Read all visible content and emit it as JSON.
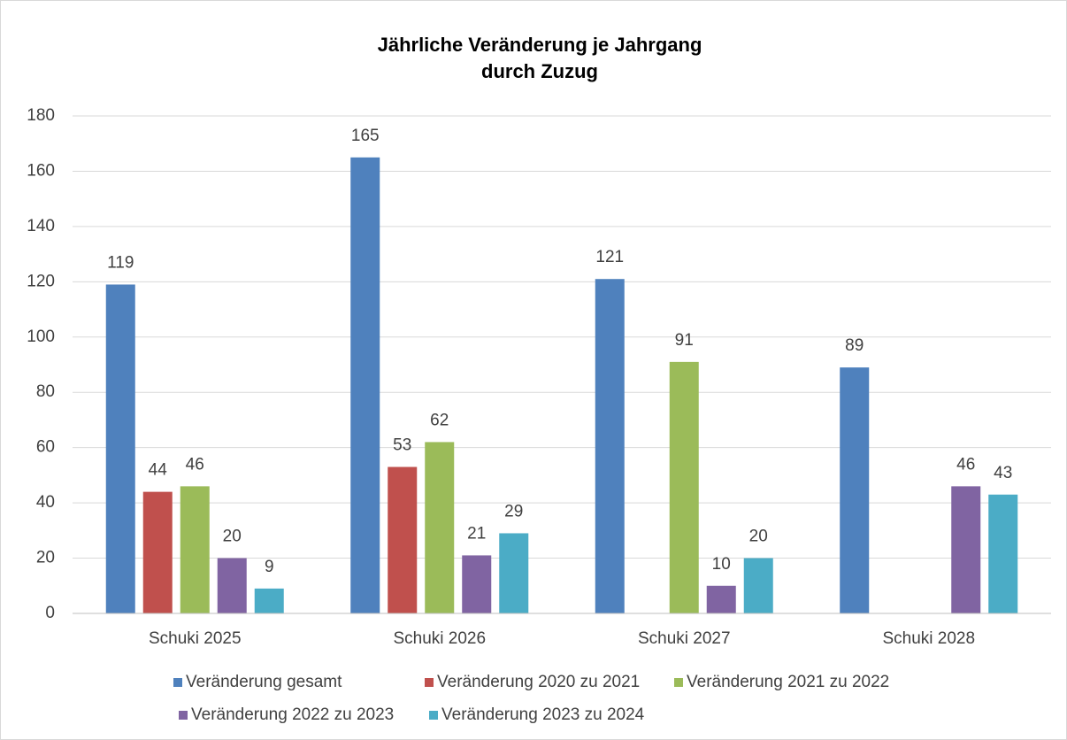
{
  "chart_data": {
    "type": "bar",
    "title": [
      "Jährliche Veränderung je Jahrgang",
      "durch Zuzug"
    ],
    "categories": [
      "Schuki 2025",
      "Schuki 2026",
      "Schuki 2027",
      "Schuki 2028"
    ],
    "series": [
      {
        "name": "Veränderung gesamt",
        "color": "#4f81bd",
        "values": [
          119,
          165,
          121,
          89
        ]
      },
      {
        "name": "Veränderung 2020 zu 2021",
        "color": "#c0504d",
        "values": [
          44,
          53,
          null,
          null
        ]
      },
      {
        "name": "Veränderung 2021 zu 2022",
        "color": "#9bbb59",
        "values": [
          46,
          62,
          91,
          null
        ]
      },
      {
        "name": "Veränderung 2022 zu 2023",
        "color": "#8064a2",
        "values": [
          20,
          21,
          10,
          46
        ]
      },
      {
        "name": "Veränderung 2023 zu 2024",
        "color": "#4bacc6",
        "values": [
          9,
          29,
          20,
          43
        ]
      }
    ],
    "ylim": [
      0,
      180
    ],
    "yticks": [
      0,
      20,
      40,
      60,
      80,
      100,
      120,
      140,
      160,
      180
    ],
    "grid": true,
    "legend": "bottom"
  }
}
